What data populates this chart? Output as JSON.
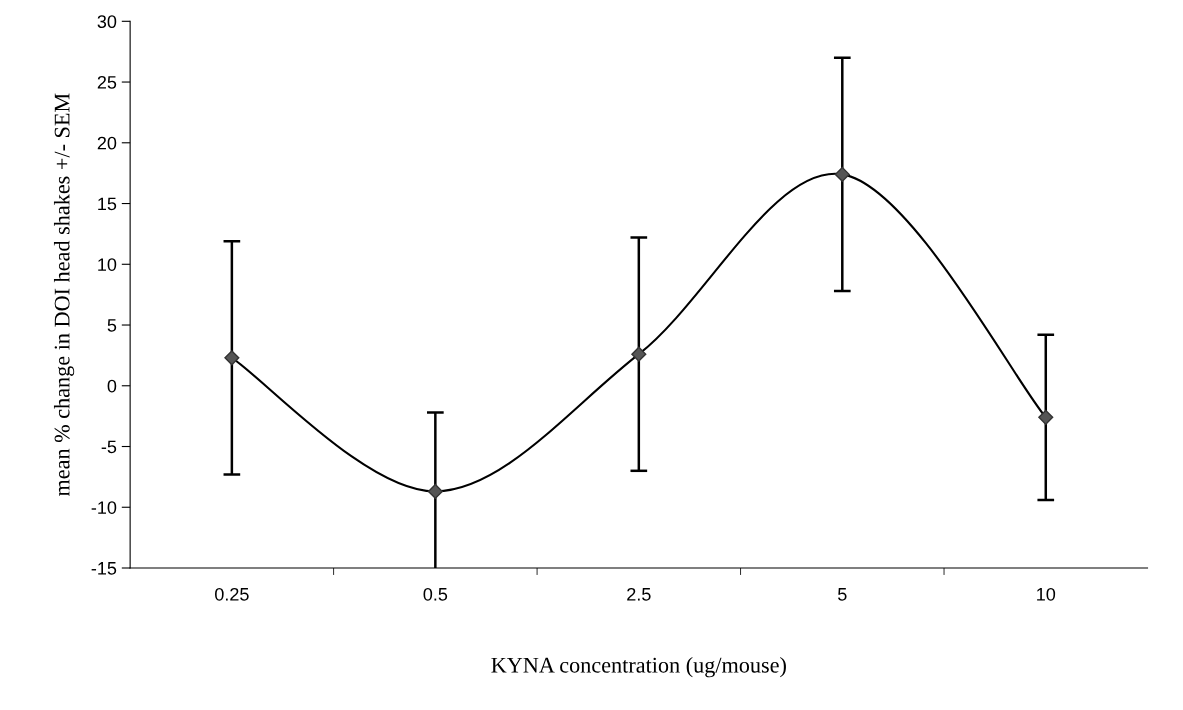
{
  "chart_data": {
    "type": "line",
    "xlabel": "KYNA concentration (ug/mouse)",
    "ylabel": "mean % change in DOI head shakes +/- SEM",
    "categories": [
      "0.25",
      "0.5",
      "2.5",
      "5",
      "10"
    ],
    "series": [
      {
        "color": "#000000",
        "values": [
          2.3,
          -8.7,
          2.6,
          17.4,
          -2.6
        ],
        "errors": [
          9.6,
          6.5,
          9.6,
          9.6,
          6.8
        ]
      }
    ],
    "ylim": [
      -15,
      30
    ],
    "yticks": [
      -15,
      -10,
      -5,
      0,
      5,
      10,
      15,
      20,
      25,
      30
    ],
    "grid": false,
    "legend": false,
    "marker": "diamond",
    "line_style": "solid"
  }
}
